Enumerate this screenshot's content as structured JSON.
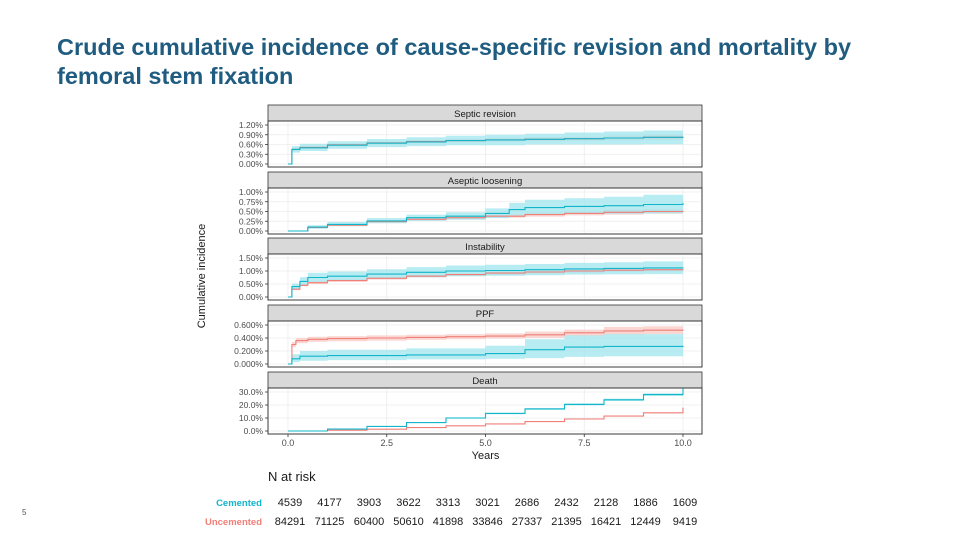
{
  "slide": {
    "title": "Crude cumulative incidence of cause-specific revision and mortality by femoral stem fixation",
    "number": "5"
  },
  "colors": {
    "cemented": "#12b5c9",
    "cemented_band": "#9fe6ee",
    "uncemented": "#f07f78",
    "uncemented_band": "#f9c9c4",
    "overlap_line": "#6e6e6e",
    "strip_bg": "#d9d9d9",
    "grid": "#ececec"
  },
  "chart_data": {
    "type": "line",
    "ylabel": "Cumulative incidence",
    "xlabel": "Years",
    "x_ticks": [
      0,
      2.5,
      5,
      7.5,
      10
    ],
    "x_tick_labels": [
      "0.0",
      "2.5",
      "5.0",
      "7.5",
      "10.0"
    ],
    "xlim": [
      0,
      10
    ],
    "grid": true,
    "panels": [
      {
        "title": "Septic revision",
        "ylim": [
          0,
          1.2
        ],
        "y_ticks": [
          0,
          0.3,
          0.6,
          0.9,
          1.2
        ],
        "y_tick_labels": [
          "0.00%",
          "0.30%",
          "0.60%",
          "0.90%",
          "1.20%"
        ],
        "series": [
          {
            "group": "cemented",
            "x": [
              0,
              0.1,
              0.3,
              1,
              2,
              3,
              4,
              5,
              6,
              7,
              8,
              9,
              10
            ],
            "y": [
              0,
              0.45,
              0.5,
              0.58,
              0.64,
              0.68,
              0.72,
              0.74,
              0.76,
              0.78,
              0.8,
              0.82,
              0.84
            ],
            "lower": [
              0,
              0.35,
              0.4,
              0.47,
              0.52,
              0.55,
              0.58,
              0.58,
              0.6,
              0.6,
              0.6,
              0.61,
              0.61
            ],
            "upper": [
              0,
              0.55,
              0.62,
              0.7,
              0.77,
              0.82,
              0.87,
              0.9,
              0.93,
              0.97,
              1.0,
              1.03,
              1.06
            ]
          },
          {
            "group": "uncemented",
            "x": [
              0,
              0.1,
              0.3,
              1,
              2,
              3,
              4,
              5,
              6,
              7,
              8,
              9,
              10
            ],
            "y": [
              0,
              0.45,
              0.51,
              0.59,
              0.65,
              0.69,
              0.72,
              0.74,
              0.76,
              0.78,
              0.8,
              0.82,
              0.84
            ],
            "lower": [
              0,
              0.41,
              0.47,
              0.55,
              0.61,
              0.64,
              0.67,
              0.69,
              0.7,
              0.72,
              0.73,
              0.74,
              0.75
            ],
            "upper": [
              0,
              0.49,
              0.55,
              0.63,
              0.69,
              0.74,
              0.77,
              0.8,
              0.82,
              0.84,
              0.87,
              0.9,
              0.93
            ]
          }
        ]
      },
      {
        "title": "Aseptic loosening",
        "ylim": [
          0,
          1.0
        ],
        "y_ticks": [
          0,
          0.25,
          0.5,
          0.75,
          1.0
        ],
        "y_tick_labels": [
          "0.00%",
          "0.25%",
          "0.50%",
          "0.75%",
          "1.00%"
        ],
        "series": [
          {
            "group": "cemented",
            "x": [
              0,
              0.5,
              1,
              2,
              3,
              4,
              5,
              5.6,
              6,
              7,
              8,
              9,
              10
            ],
            "y": [
              0,
              0.1,
              0.17,
              0.26,
              0.34,
              0.38,
              0.45,
              0.55,
              0.6,
              0.63,
              0.65,
              0.68,
              0.72
            ],
            "lower": [
              0,
              0.06,
              0.12,
              0.2,
              0.26,
              0.29,
              0.33,
              0.4,
              0.42,
              0.44,
              0.44,
              0.45,
              0.47
            ],
            "upper": [
              0,
              0.15,
              0.23,
              0.33,
              0.42,
              0.48,
              0.58,
              0.72,
              0.8,
              0.84,
              0.88,
              0.93,
              1.0
            ]
          },
          {
            "group": "uncemented",
            "x": [
              0,
              0.5,
              1,
              2,
              3,
              4,
              5,
              6,
              7,
              8,
              9,
              10
            ],
            "y": [
              0,
              0.09,
              0.15,
              0.24,
              0.3,
              0.34,
              0.38,
              0.42,
              0.45,
              0.48,
              0.5,
              0.52
            ],
            "lower": [
              0,
              0.07,
              0.13,
              0.21,
              0.27,
              0.3,
              0.34,
              0.37,
              0.4,
              0.42,
              0.44,
              0.45
            ],
            "upper": [
              0,
              0.11,
              0.17,
              0.27,
              0.33,
              0.38,
              0.42,
              0.47,
              0.5,
              0.54,
              0.56,
              0.59
            ]
          }
        ]
      },
      {
        "title": "Instability",
        "ylim": [
          0,
          1.5
        ],
        "y_ticks": [
          0,
          0.5,
          1.0,
          1.5
        ],
        "y_tick_labels": [
          "0.00%",
          "0.50%",
          "1.00%",
          "1.50%"
        ],
        "series": [
          {
            "group": "cemented",
            "x": [
              0,
              0.1,
              0.3,
              0.5,
              1,
              2,
              3,
              4,
              5,
              6,
              7,
              8,
              9,
              10
            ],
            "y": [
              0,
              0.4,
              0.6,
              0.75,
              0.8,
              0.88,
              0.95,
              1.0,
              1.02,
              1.05,
              1.08,
              1.1,
              1.12,
              1.14
            ],
            "lower": [
              0,
              0.28,
              0.45,
              0.58,
              0.63,
              0.7,
              0.76,
              0.8,
              0.82,
              0.84,
              0.86,
              0.87,
              0.88,
              0.88
            ],
            "upper": [
              0,
              0.52,
              0.76,
              0.93,
              0.98,
              1.07,
              1.15,
              1.21,
              1.24,
              1.27,
              1.31,
              1.34,
              1.37,
              1.4
            ]
          },
          {
            "group": "uncemented",
            "x": [
              0,
              0.1,
              0.3,
              0.5,
              1,
              2,
              3,
              4,
              5,
              6,
              7,
              8,
              9,
              10
            ],
            "y": [
              0,
              0.3,
              0.45,
              0.55,
              0.63,
              0.72,
              0.8,
              0.86,
              0.92,
              0.96,
              1.0,
              1.03,
              1.05,
              1.07
            ],
            "lower": [
              0,
              0.26,
              0.41,
              0.5,
              0.58,
              0.67,
              0.75,
              0.81,
              0.86,
              0.9,
              0.94,
              0.97,
              0.99,
              1.0
            ],
            "upper": [
              0,
              0.34,
              0.5,
              0.6,
              0.68,
              0.77,
              0.85,
              0.91,
              0.98,
              1.02,
              1.06,
              1.1,
              1.12,
              1.15
            ]
          }
        ]
      },
      {
        "title": "PPF",
        "ylim": [
          0,
          0.6
        ],
        "y_ticks": [
          0,
          0.2,
          0.4,
          0.6
        ],
        "y_tick_labels": [
          "0.000%",
          "0.200%",
          "0.400%",
          "0.600%"
        ],
        "series": [
          {
            "group": "cemented",
            "x": [
              0,
              0.1,
              0.3,
              1,
              3,
              5,
              6,
              7,
              8,
              10
            ],
            "y": [
              0,
              0.08,
              0.12,
              0.13,
              0.14,
              0.16,
              0.22,
              0.26,
              0.27,
              0.28
            ],
            "lower": [
              0,
              0.03,
              0.05,
              0.06,
              0.07,
              0.08,
              0.09,
              0.11,
              0.12,
              0.12
            ],
            "upper": [
              0,
              0.15,
              0.2,
              0.22,
              0.24,
              0.28,
              0.38,
              0.44,
              0.46,
              0.48
            ]
          },
          {
            "group": "uncemented",
            "x": [
              0,
              0.1,
              0.2,
              0.5,
              1,
              2,
              3,
              4,
              5,
              6,
              7,
              8,
              9,
              10
            ],
            "y": [
              0,
              0.3,
              0.36,
              0.38,
              0.39,
              0.4,
              0.41,
              0.42,
              0.43,
              0.45,
              0.48,
              0.51,
              0.52,
              0.53
            ],
            "lower": [
              0,
              0.26,
              0.32,
              0.34,
              0.35,
              0.36,
              0.37,
              0.38,
              0.39,
              0.4,
              0.43,
              0.45,
              0.46,
              0.47
            ],
            "upper": [
              0,
              0.34,
              0.4,
              0.42,
              0.43,
              0.44,
              0.45,
              0.46,
              0.47,
              0.5,
              0.53,
              0.57,
              0.58,
              0.59
            ]
          }
        ]
      },
      {
        "title": "Death",
        "ylim": [
          0,
          30
        ],
        "y_ticks": [
          0,
          10,
          20,
          30
        ],
        "y_tick_labels": [
          "0.0%",
          "10.0%",
          "20.0%",
          "30.0%"
        ],
        "series": [
          {
            "group": "cemented",
            "x": [
              0,
              1,
              2,
              3,
              4,
              5,
              6,
              7,
              8,
              9,
              10
            ],
            "y": [
              0,
              1.5,
              3.5,
              6.5,
              10,
              13.5,
              17,
              20.5,
              24,
              28,
              33
            ],
            "lower": [
              0,
              1.3,
              3.2,
              6.1,
              9.5,
              12.9,
              16.3,
              19.7,
              23.1,
              26.9,
              31.5
            ],
            "upper": [
              0,
              1.7,
              3.8,
              6.9,
              10.5,
              14.1,
              17.7,
              21.3,
              24.9,
              29.1,
              34.5
            ]
          },
          {
            "group": "uncemented",
            "x": [
              0,
              1,
              2,
              3,
              4,
              5,
              6,
              7,
              8,
              9,
              10
            ],
            "y": [
              0,
              0.6,
              1.4,
              2.6,
              4,
              5.5,
              7.2,
              9.2,
              11.5,
              14,
              18
            ],
            "lower": [
              0,
              0.55,
              1.3,
              2.5,
              3.9,
              5.4,
              7.0,
              9.0,
              11.2,
              13.7,
              17.5
            ],
            "upper": [
              0,
              0.65,
              1.5,
              2.7,
              4.1,
              5.6,
              7.4,
              9.4,
              11.8,
              14.3,
              18.5
            ]
          }
        ]
      }
    ],
    "risk_table": {
      "title": "N at risk",
      "rows": [
        {
          "label": "Cemented",
          "group": "cemented",
          "values": [
            "4539",
            "4177",
            "3903",
            "3622",
            "3313",
            "3021",
            "2686",
            "2432",
            "2128",
            "1886",
            "1609"
          ]
        },
        {
          "label": "Uncemented",
          "group": "uncemented",
          "values": [
            "84291",
            "71125",
            "60400",
            "50610",
            "41898",
            "33846",
            "27337",
            "21395",
            "16421",
            "12449",
            "9419"
          ]
        }
      ]
    }
  }
}
